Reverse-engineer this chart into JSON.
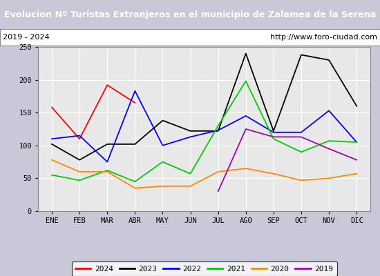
{
  "title": "Evolucion Nº Turistas Extranjeros en el municipio de Zalamea de la Serena",
  "subtitle_left": "2019 - 2024",
  "subtitle_right": "http://www.foro-ciudad.com",
  "months": [
    "ENE",
    "FEB",
    "MAR",
    "ABR",
    "MAY",
    "JUN",
    "JUL",
    "AGO",
    "SEP",
    "OCT",
    "NOV",
    "DIC"
  ],
  "ylim": [
    0,
    250
  ],
  "yticks": [
    0,
    50,
    100,
    150,
    200,
    250
  ],
  "series": {
    "2024": {
      "color": "#ff0000",
      "values": [
        158,
        110,
        192,
        165,
        null,
        null,
        null,
        null,
        null,
        null,
        null,
        null
      ]
    },
    "2023": {
      "color": "#000000",
      "values": [
        102,
        78,
        102,
        102,
        138,
        122,
        122,
        240,
        122,
        238,
        230,
        160
      ]
    },
    "2022": {
      "color": "#0000ff",
      "values": [
        110,
        115,
        75,
        183,
        100,
        113,
        123,
        145,
        120,
        120,
        153,
        105
      ]
    },
    "2021": {
      "color": "#00cc00",
      "values": [
        55,
        47,
        62,
        45,
        75,
        57,
        130,
        198,
        110,
        90,
        107,
        105
      ]
    },
    "2020": {
      "color": "#ff8800",
      "values": [
        78,
        60,
        60,
        35,
        38,
        38,
        60,
        65,
        57,
        47,
        50,
        57
      ]
    },
    "2019": {
      "color": "#aa00aa",
      "values": [
        null,
        null,
        null,
        null,
        null,
        null,
        30,
        125,
        113,
        113,
        95,
        78
      ]
    }
  },
  "legend_order": [
    "2024",
    "2023",
    "2022",
    "2021",
    "2020",
    "2019"
  ],
  "title_bg_color": "#4f86c6",
  "title_text_color": "white",
  "plot_bg_color": "#e8e8e8",
  "grid_color": "#ffffff",
  "outer_bg": "#c8c8d8"
}
